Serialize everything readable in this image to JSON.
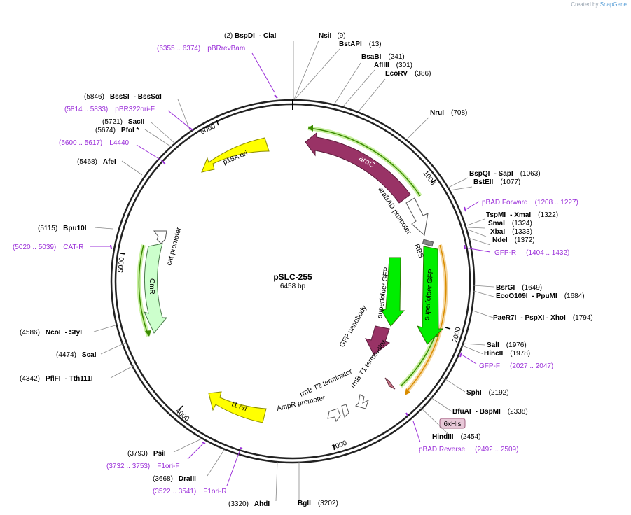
{
  "credit": {
    "created_by": "Created by",
    "app": "SnapGene"
  },
  "plasmid": {
    "name": "pSLC-255",
    "size": "6458 bp"
  },
  "ticks": [
    "1000",
    "2000",
    "3000",
    "4000",
    "5000",
    "6000"
  ],
  "sites": [
    {
      "pos": "(2)",
      "name": "BspDI",
      "alt": "- ClaI"
    },
    {
      "name": "NsiI",
      "pos": "(9)"
    },
    {
      "name": "BstAPI",
      "pos": "(13)"
    },
    {
      "name": "BsaBI",
      "pos": "(241)"
    },
    {
      "name": "AflIII",
      "pos": "(301)"
    },
    {
      "name": "EcoRV",
      "pos": "(386)"
    },
    {
      "name": "NruI",
      "pos": "(708)"
    },
    {
      "name": "BspQI",
      "alt": "- SapI",
      "pos": "(1063)"
    },
    {
      "name": "BstEII",
      "pos": "(1077)"
    },
    {
      "name": "TspMI",
      "alt": "- XmaI",
      "pos": "(1322)"
    },
    {
      "name": "SmaI",
      "pos": "(1324)"
    },
    {
      "name": "XbaI",
      "pos": "(1333)"
    },
    {
      "name": "NdeI",
      "pos": "(1372)"
    },
    {
      "name": "BsrGI",
      "pos": "(1649)"
    },
    {
      "name": "EcoO109I",
      "alt": "- PpuMI",
      "pos": "(1684)"
    },
    {
      "name": "PaeR7I",
      "alt": "- PspXI   - XhoI",
      "pos": "(1794)"
    },
    {
      "name": "SalI",
      "pos": "(1976)"
    },
    {
      "name": "HincII",
      "pos": "(1978)"
    },
    {
      "name": "SphI",
      "pos": "(2192)"
    },
    {
      "name": "BfuAI",
      "alt": "- BspMI",
      "pos": "(2338)"
    },
    {
      "name": "HindIII",
      "pos": "(2454)"
    },
    {
      "name": "BglI",
      "pos": "(3202)"
    },
    {
      "pos": "(3320)",
      "name": "AhdI"
    },
    {
      "pos": "(3668)",
      "name": "DraIII"
    },
    {
      "pos": "(3793)",
      "name": "PsiI"
    },
    {
      "name": "PflFI",
      "alt": "- Tth111I",
      "pos": "(4342)"
    },
    {
      "pos": "(4474)",
      "name": "ScaI"
    },
    {
      "pos": "(4586)",
      "name": "NcoI",
      "alt": "- StyI"
    },
    {
      "pos": "(5115)",
      "name": "Bpu10I"
    },
    {
      "pos": "(5468)",
      "name": "AfeI"
    },
    {
      "pos": "(5674)",
      "name": "PfoI *"
    },
    {
      "pos": "(5721)",
      "name": "SacII"
    },
    {
      "pos": "(5846)",
      "name": "BssSI",
      "alt": "- BssSαI"
    }
  ],
  "primers": [
    {
      "range": "(6355 .. 6374)",
      "name": "pBRrevBam"
    },
    {
      "range": "(5814 .. 5833)",
      "name": "pBR322ori-F"
    },
    {
      "range": "(5600 .. 5617)",
      "name": "L4440"
    },
    {
      "name": "pBAD Forward",
      "range": "(1208 .. 1227)"
    },
    {
      "name": "GFP-R",
      "range": "(1404 .. 1432)"
    },
    {
      "range": "(5020 .. 5039)",
      "name": "CAT-R"
    },
    {
      "name": "GFP-F",
      "range": "(2027 .. 2047)"
    },
    {
      "name": "pBAD Reverse",
      "range": "(2492 .. 2509)"
    },
    {
      "range": "(3732 .. 3753)",
      "name": "F1ori-F"
    },
    {
      "range": "(3522 .. 3541)",
      "name": "F1ori-R"
    }
  ],
  "features": {
    "p15a": "p15A ori",
    "arac": "araC",
    "arabad": "araBAD promoter",
    "rbs": "RBS",
    "sfgfp_outer": "superfolder GFP",
    "sfgfp_inner": "superfolder GFP",
    "nanobody": "GFP nanobody",
    "rrnb_t1": "rrnB T1 terminator",
    "rrnb_t2": "rrnB T2 terminator",
    "ampr_promoter": "AmpR promoter",
    "f1": "f1 ori",
    "cmr": "CmR",
    "cat_promoter": "cat promoter",
    "his": "6xHis"
  },
  "colors": {
    "p15a": "#ffff00",
    "arac": "#993366",
    "gfp": "#00ee00",
    "promoter": "#ffffff",
    "cmr": "#ccffcc",
    "primer": "#9b30d9",
    "orf_green": "#3a8a00",
    "orf_orange": "#d98c00"
  }
}
